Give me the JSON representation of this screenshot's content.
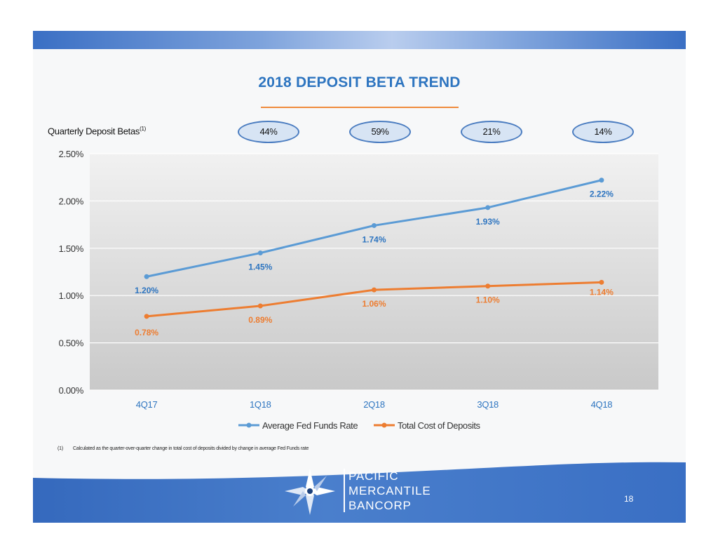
{
  "slide": {
    "title": "2018 DEPOSIT BETA TREND",
    "beta_label": "Quarterly Deposit Betas",
    "beta_label_sup": "(1)",
    "betas": [
      "44%",
      "59%",
      "21%",
      "14%"
    ],
    "footnote_number": "(1)",
    "footnote_text": "Calculated as the quarter-over-quarter change in total cost of deposits divided by change in average Fed Funds rate",
    "page_number": "18"
  },
  "logo": {
    "lines": [
      "PACIFIC",
      "MERCANTILE",
      "BANCORP"
    ]
  },
  "colors": {
    "title": "#2e75c0",
    "series_fed": "#5b9bd5",
    "series_deposits": "#ed7d31",
    "label_fed": "#2e75c0",
    "label_deposits": "#ed7d31",
    "band": "#3a6fc4"
  },
  "chart_data": {
    "type": "line",
    "categories": [
      "4Q17",
      "1Q18",
      "2Q18",
      "3Q18",
      "4Q18"
    ],
    "series": [
      {
        "name": "Average Fed Funds Rate",
        "values": [
          1.2,
          1.45,
          1.74,
          1.93,
          2.22
        ],
        "labels": [
          "1.20%",
          "1.45%",
          "1.74%",
          "1.93%",
          "2.22%"
        ]
      },
      {
        "name": "Total Cost of Deposits",
        "values": [
          0.78,
          0.89,
          1.06,
          1.1,
          1.14
        ],
        "labels": [
          "0.78%",
          "0.89%",
          "1.06%",
          "1.10%",
          "1.14%"
        ]
      }
    ],
    "ylim": [
      0,
      2.5
    ],
    "yticks": [
      0,
      0.5,
      1.0,
      1.5,
      2.0,
      2.5
    ],
    "ytick_labels": [
      "0.00%",
      "0.50%",
      "1.00%",
      "1.50%",
      "2.00%",
      "2.50%"
    ],
    "grid": true,
    "legend": "bottom"
  }
}
